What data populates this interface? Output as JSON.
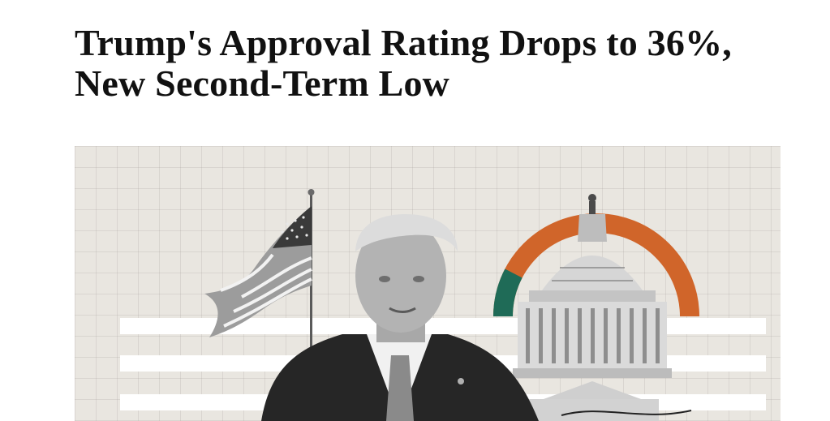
{
  "article": {
    "headline": "Trump's Approval Rating Drops to 36%, New Second-Term Low"
  },
  "hero_image": {
    "elements": [
      "american-flag",
      "trump-portrait",
      "capitol-dome",
      "approval-gauge"
    ],
    "gauge_colors": {
      "disapprove": "#d0652a",
      "approve": "#1f6b57"
    },
    "background_color": "#e9e6e0"
  }
}
